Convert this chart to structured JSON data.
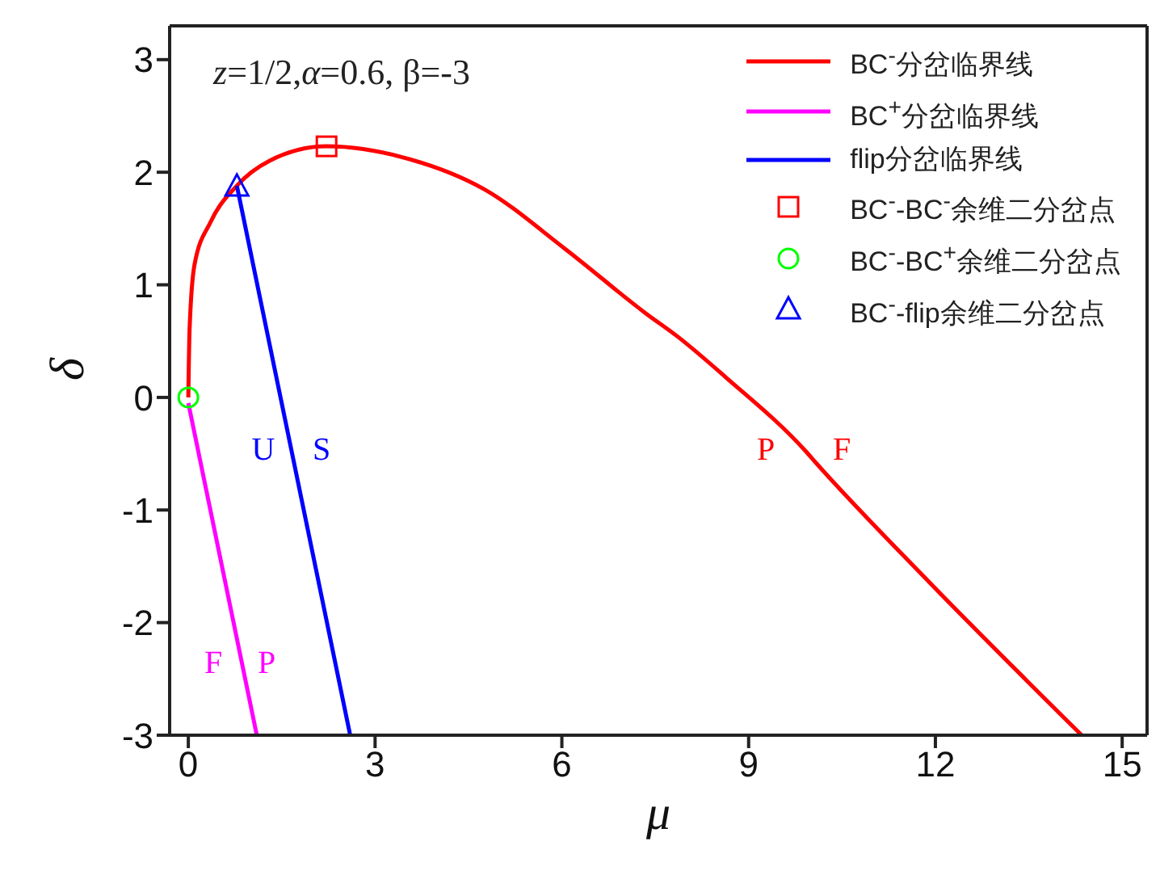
{
  "chart_data": {
    "type": "line",
    "xlabel": "μ",
    "ylabel": "δ",
    "xlim": [
      -0.3,
      15.4
    ],
    "ylim": [
      -3,
      3.3
    ],
    "xticks": [
      0,
      3,
      6,
      9,
      12,
      15
    ],
    "yticks": [
      -3,
      -2,
      -1,
      0,
      1,
      2,
      3
    ],
    "grid": false,
    "legend": "top right",
    "line_style": "solid",
    "annotations": [
      "z=1/2,α=0.6, β=-3",
      "U",
      "S",
      "P",
      "F",
      "F",
      "P"
    ],
    "series": [
      {
        "name": "BC$^{-}$分岔临界线",
        "type": "line",
        "color": "#ff0000",
        "marker": "none",
        "x": [
          0,
          0.02,
          0.1,
          0.36,
          0.78,
          1.3,
          2.22,
          3.46,
          4.75,
          6.05,
          7.34,
          7.86,
          8.63,
          9.92,
          10.08,
          11.9,
          14.35
        ],
        "values": [
          0,
          0.6,
          1.18,
          1.56,
          1.88,
          2.1,
          2.23,
          2.13,
          1.85,
          1.32,
          0.75,
          0.54,
          0.18,
          -0.48,
          -0.58,
          -1.64,
          -3
        ]
      },
      {
        "name": "BC$^{+}$分岔临界线",
        "type": "line",
        "color": "#ff00ff",
        "marker": "none",
        "x": [
          0,
          1.1
        ],
        "values": [
          -0.05,
          -3
        ]
      },
      {
        "name": "flip分岔临界线",
        "type": "line",
        "color": "#0000ff",
        "marker": "none",
        "x": [
          0.78,
          2.6
        ],
        "values": [
          1.88,
          -3
        ]
      },
      {
        "name": "BC$^{-}$-BC$^{-}$余维二分岔点",
        "type": "scatter",
        "color": "#ff0000",
        "marker": "square",
        "x": [
          2.22
        ],
        "values": [
          2.23
        ]
      },
      {
        "name": "BC$^{-}$-BC$^{+}$余维二分岔点",
        "type": "scatter",
        "color": "#00ff00",
        "marker": "circle",
        "x": [
          0
        ],
        "values": [
          0
        ]
      },
      {
        "name": "BC$^{-}$-flip余维二分岔点",
        "type": "scatter",
        "color": "#0000ff",
        "marker": "triangle",
        "x": [
          0.78
        ],
        "values": [
          1.88
        ]
      }
    ]
  }
}
